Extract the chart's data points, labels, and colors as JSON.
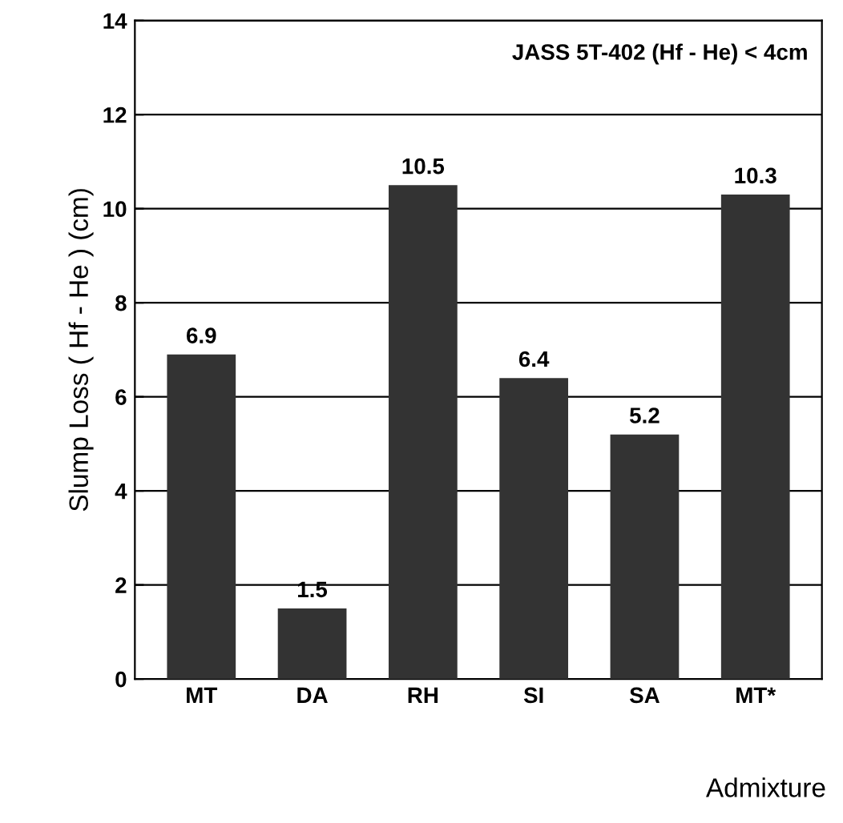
{
  "chart_data": {
    "type": "bar",
    "categories": [
      "MT",
      "DA",
      "RH",
      "SI",
      "SA",
      "MT*"
    ],
    "values": [
      6.9,
      1.5,
      10.5,
      6.4,
      5.2,
      10.3
    ],
    "color": "#333333",
    "xlabel": "Admixture",
    "ylabel": "Slump Loss ( Hf - He ) (cm)",
    "annotations": [
      "JASS 5T-402 (Hf - He) < 4cm"
    ],
    "ylim": [
      0,
      14
    ],
    "yticks": [
      0,
      2,
      4,
      6,
      8,
      10,
      12,
      14
    ],
    "grid": "y",
    "data_labels": true
  }
}
